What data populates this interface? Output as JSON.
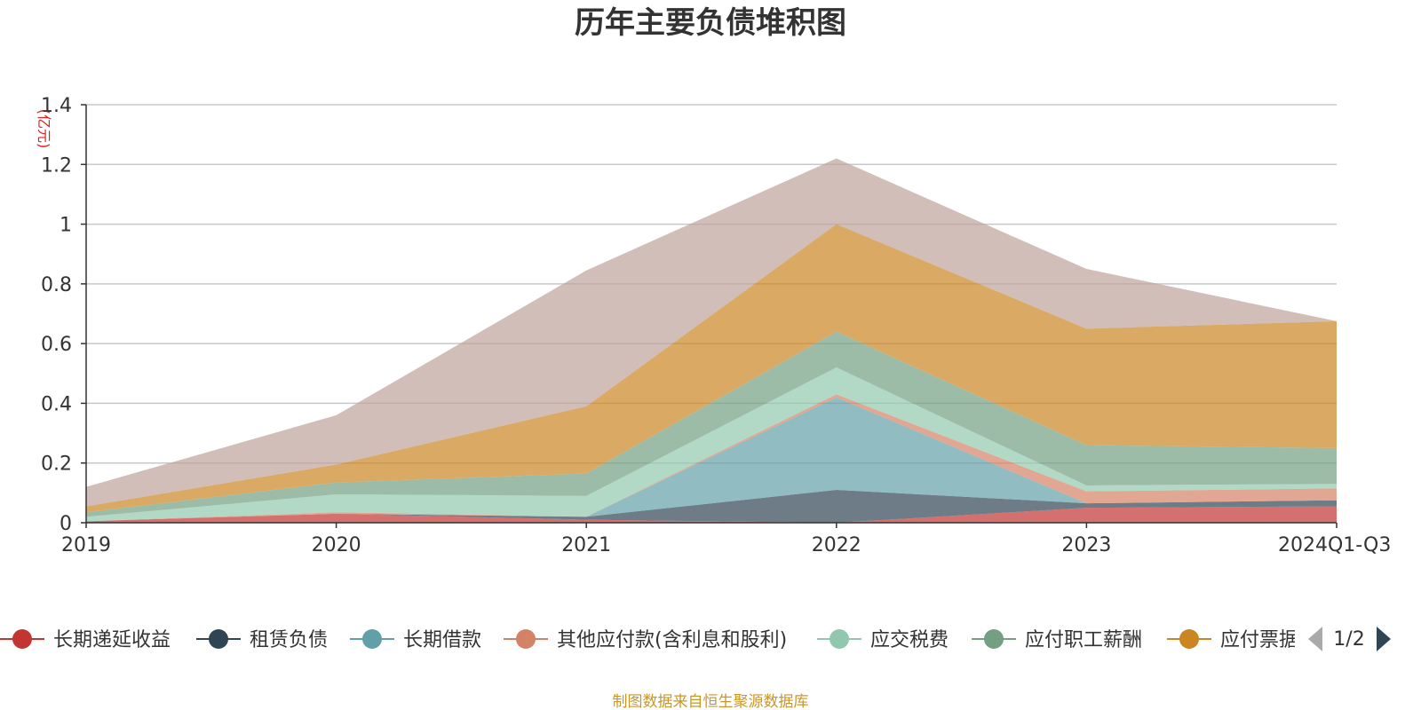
{
  "chart_data": {
    "type": "area",
    "stacked": true,
    "title": "历年主要负债堆积图",
    "unit": "(亿元)",
    "categories": [
      "2019",
      "2020",
      "2021",
      "2022",
      "2023",
      "2024Q1-Q3"
    ],
    "ylim": [
      0,
      1.4
    ],
    "yticks": [
      "0",
      "0.2",
      "0.4",
      "0.6",
      "0.8",
      "1",
      "1.2",
      "1.4"
    ],
    "grid": true,
    "legend_position": "bottom",
    "series": [
      {
        "name": "长期递延收益",
        "color": "#c23531",
        "values": [
          0.005,
          0.03,
          0.01,
          0.0,
          0.05,
          0.055
        ]
      },
      {
        "name": "租赁负债",
        "color": "#2f4554",
        "values": [
          0.0,
          0.0,
          0.01,
          0.11,
          0.015,
          0.02
        ]
      },
      {
        "name": "长期借款",
        "color": "#61a0a8",
        "values": [
          0.0,
          0.0,
          0.0,
          0.31,
          0.0,
          0.0
        ]
      },
      {
        "name": "其他应付款(含利息和股利)",
        "color": "#d48265",
        "values": [
          0.0,
          0.005,
          0.0,
          0.01,
          0.04,
          0.04
        ]
      },
      {
        "name": "应交税费",
        "color": "#91c7ae",
        "values": [
          0.015,
          0.06,
          0.07,
          0.09,
          0.02,
          0.015
        ]
      },
      {
        "name": "应付职工薪酬",
        "color": "#749f83",
        "values": [
          0.015,
          0.04,
          0.075,
          0.12,
          0.135,
          0.12
        ]
      },
      {
        "name": "应付票据",
        "color": "#ca8622",
        "values": [
          0.02,
          0.06,
          0.225,
          0.36,
          0.39,
          0.425
        ]
      },
      {
        "name": "",
        "color": "#bda29a",
        "values": [
          0.065,
          0.165,
          0.455,
          0.22,
          0.2,
          0.0
        ]
      }
    ],
    "legend_page": "1/2"
  },
  "footer": {
    "source": "制图数据来自恒生聚源数据库"
  }
}
